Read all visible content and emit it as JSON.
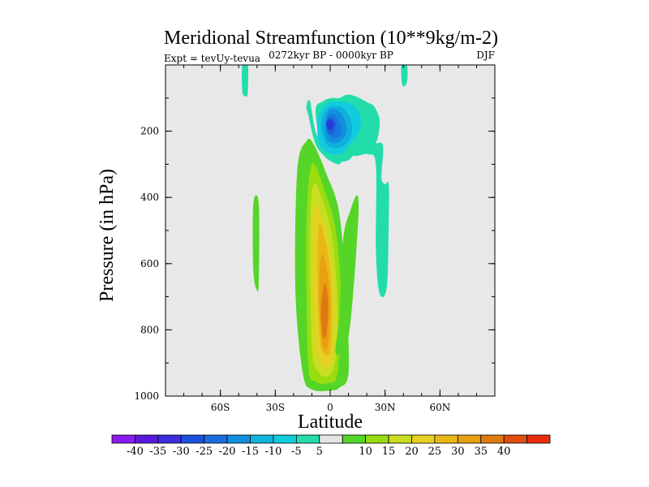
{
  "chart_data": {
    "type": "heatmap",
    "title": "Meridional Streamfunction (10**9kg/m-2)",
    "subtitle_left": "Expt = tevUy-tevua",
    "subtitle_center": "0272kyr BP - 0000kyr BP",
    "subtitle_right": "DJF",
    "xlabel": "Latitude",
    "ylabel": "Pressure (in hPa)",
    "xlim": [
      -90,
      90
    ],
    "ylim": [
      1000,
      0
    ],
    "x_ticks": [
      {
        "value": -60,
        "label": "60S"
      },
      {
        "value": -30,
        "label": "30S"
      },
      {
        "value": 0,
        "label": "0"
      },
      {
        "value": 30,
        "label": "30N"
      },
      {
        "value": 60,
        "label": "60N"
      }
    ],
    "y_ticks": [
      {
        "value": 200,
        "label": "200"
      },
      {
        "value": 400,
        "label": "400"
      },
      {
        "value": 600,
        "label": "600"
      },
      {
        "value": 800,
        "label": "800"
      },
      {
        "value": 1000,
        "label": "1000"
      }
    ],
    "background_color": "#e8e8e8",
    "contour_regions": [
      {
        "level": 5,
        "color": "#55d528",
        "lat": [
          -10,
          0,
          5,
          10,
          9,
          5,
          -2,
          -9,
          -13,
          -18,
          -19,
          -15
        ],
        "p": [
          980,
          983,
          975,
          930,
          720,
          450,
          330,
          240,
          230,
          320,
          680,
          930
        ]
      },
      {
        "level": 10,
        "color": "#99dd11",
        "lat": [
          -8,
          -1,
          4,
          6,
          3,
          -3,
          -10,
          -13,
          -12
        ],
        "p": [
          955,
          960,
          930,
          720,
          500,
          380,
          300,
          500,
          900
        ]
      },
      {
        "level": 15,
        "color": "#c9dd22",
        "lat": [
          -6,
          0,
          3,
          4,
          1,
          -4,
          -9,
          -11,
          -10
        ],
        "p": [
          930,
          935,
          880,
          720,
          520,
          410,
          360,
          500,
          850
        ]
      },
      {
        "level": 20,
        "color": "#e8d020",
        "lat": [
          -5,
          0,
          2,
          2,
          -1,
          -5,
          -8,
          -9,
          -8
        ],
        "p": [
          900,
          905,
          820,
          680,
          540,
          460,
          420,
          550,
          820
        ]
      },
      {
        "level": 25,
        "color": "#e8b818",
        "lat": [
          -4,
          0,
          1,
          0,
          -3,
          -6,
          -7,
          -6
        ],
        "p": [
          870,
          865,
          760,
          620,
          520,
          480,
          600,
          800
        ]
      },
      {
        "level": 30,
        "color": "#e8a010",
        "lat": [
          -4,
          -1,
          0,
          -2,
          -5,
          -6
        ],
        "p": [
          850,
          840,
          720,
          610,
          580,
          720
        ]
      },
      {
        "level": 35,
        "color": "#dd7a10",
        "lat": [
          -4,
          -2,
          -1,
          -3,
          -5
        ],
        "p": [
          820,
          810,
          720,
          660,
          740
        ]
      },
      {
        "level": 5,
        "color": "#55d528",
        "lat": [
          3,
          10,
          15,
          15,
          11,
          7,
          5
        ],
        "p": [
          870,
          820,
          500,
          395,
          440,
          530,
          760
        ]
      },
      {
        "level": 5,
        "color": "#55d528",
        "lat": [
          -42,
          -39,
          -39,
          -40,
          -42
        ],
        "p": [
          420,
          420,
          650,
          680,
          620
        ]
      },
      {
        "level": -5,
        "color": "#22ddaa",
        "lat": [
          -7,
          4,
          12,
          20,
          25,
          25,
          28,
          29,
          28,
          30,
          32,
          32,
          31,
          27,
          25,
          25,
          21,
          14,
          9,
          4,
          -7,
          -12,
          -13,
          -11
        ],
        "p": [
          215,
          285,
          200,
          180,
          205,
          235,
          235,
          260,
          340,
          360,
          360,
          470,
          670,
          690,
          560,
          305,
          270,
          275,
          270,
          300,
          250,
          150,
          125,
          110
        ]
      },
      {
        "level": -5,
        "color": "#22ddaa",
        "lat": [
          -3,
          9,
          16,
          24,
          26,
          27,
          24,
          21,
          14,
          9,
          5,
          1,
          -4,
          -8
        ],
        "p": [
          275,
          290,
          250,
          235,
          220,
          165,
          125,
          115,
          95,
          90,
          100,
          100,
          110,
          140
        ]
      },
      {
        "level": -5,
        "color": "#22ddaa",
        "lat": [
          -48,
          -45,
          -45,
          -46,
          -48
        ],
        "p": [
          0,
          0,
          80,
          95,
          80
        ]
      },
      {
        "level": -5,
        "color": "#22ddaa",
        "lat": [
          39,
          42,
          42,
          40,
          39
        ],
        "p": [
          0,
          0,
          50,
          65,
          45
        ]
      },
      {
        "level": -10,
        "color": "#12ccdd",
        "lat": [
          -5,
          5,
          11,
          15,
          17,
          15,
          10,
          3,
          -3,
          -7
        ],
        "p": [
          250,
          270,
          240,
          210,
          170,
          135,
          115,
          110,
          120,
          170
        ]
      },
      {
        "level": -15,
        "color": "#10b0dd",
        "lat": [
          -2,
          5,
          10,
          12,
          11,
          7,
          2,
          -2,
          -5
        ],
        "p": [
          240,
          250,
          230,
          200,
          160,
          130,
          125,
          135,
          180
        ]
      },
      {
        "level": -20,
        "color": "#1090dd",
        "lat": [
          -1,
          4,
          8,
          9,
          7,
          3,
          -1,
          -3
        ],
        "p": [
          230,
          235,
          215,
          190,
          155,
          135,
          140,
          190
        ]
      },
      {
        "level": -25,
        "color": "#1878dd",
        "lat": [
          0,
          4,
          6,
          5,
          2,
          -1,
          -2
        ],
        "p": [
          215,
          220,
          200,
          170,
          150,
          155,
          185
        ]
      },
      {
        "level": -30,
        "color": "#1e5ddd",
        "lat": [
          -1,
          2,
          3,
          1,
          -2
        ],
        "p": [
          205,
          205,
          180,
          160,
          170
        ]
      },
      {
        "level": -35,
        "color": "#2a3add",
        "lat": [
          -1,
          1,
          2,
          0,
          -2
        ],
        "p": [
          195,
          192,
          175,
          165,
          175
        ]
      }
    ],
    "colorbar": {
      "colors": [
        "#8a1aee",
        "#5a18dd",
        "#3a2edd",
        "#1f50dd",
        "#1a6ddd",
        "#1290dd",
        "#10b5dd",
        "#12ccdd",
        "#22ddaa",
        "#e5e5e5",
        "#55d528",
        "#99dd11",
        "#c9dd22",
        "#e8d020",
        "#e8b818",
        "#e8a010",
        "#dd7a10",
        "#e04d10",
        "#e82d0f"
      ],
      "labels": [
        "-40",
        "-35",
        "-30",
        "-25",
        "-20",
        "-15",
        "-10",
        "-5",
        "5",
        "10",
        "15",
        "20",
        "25",
        "30",
        "35",
        "40"
      ]
    }
  }
}
